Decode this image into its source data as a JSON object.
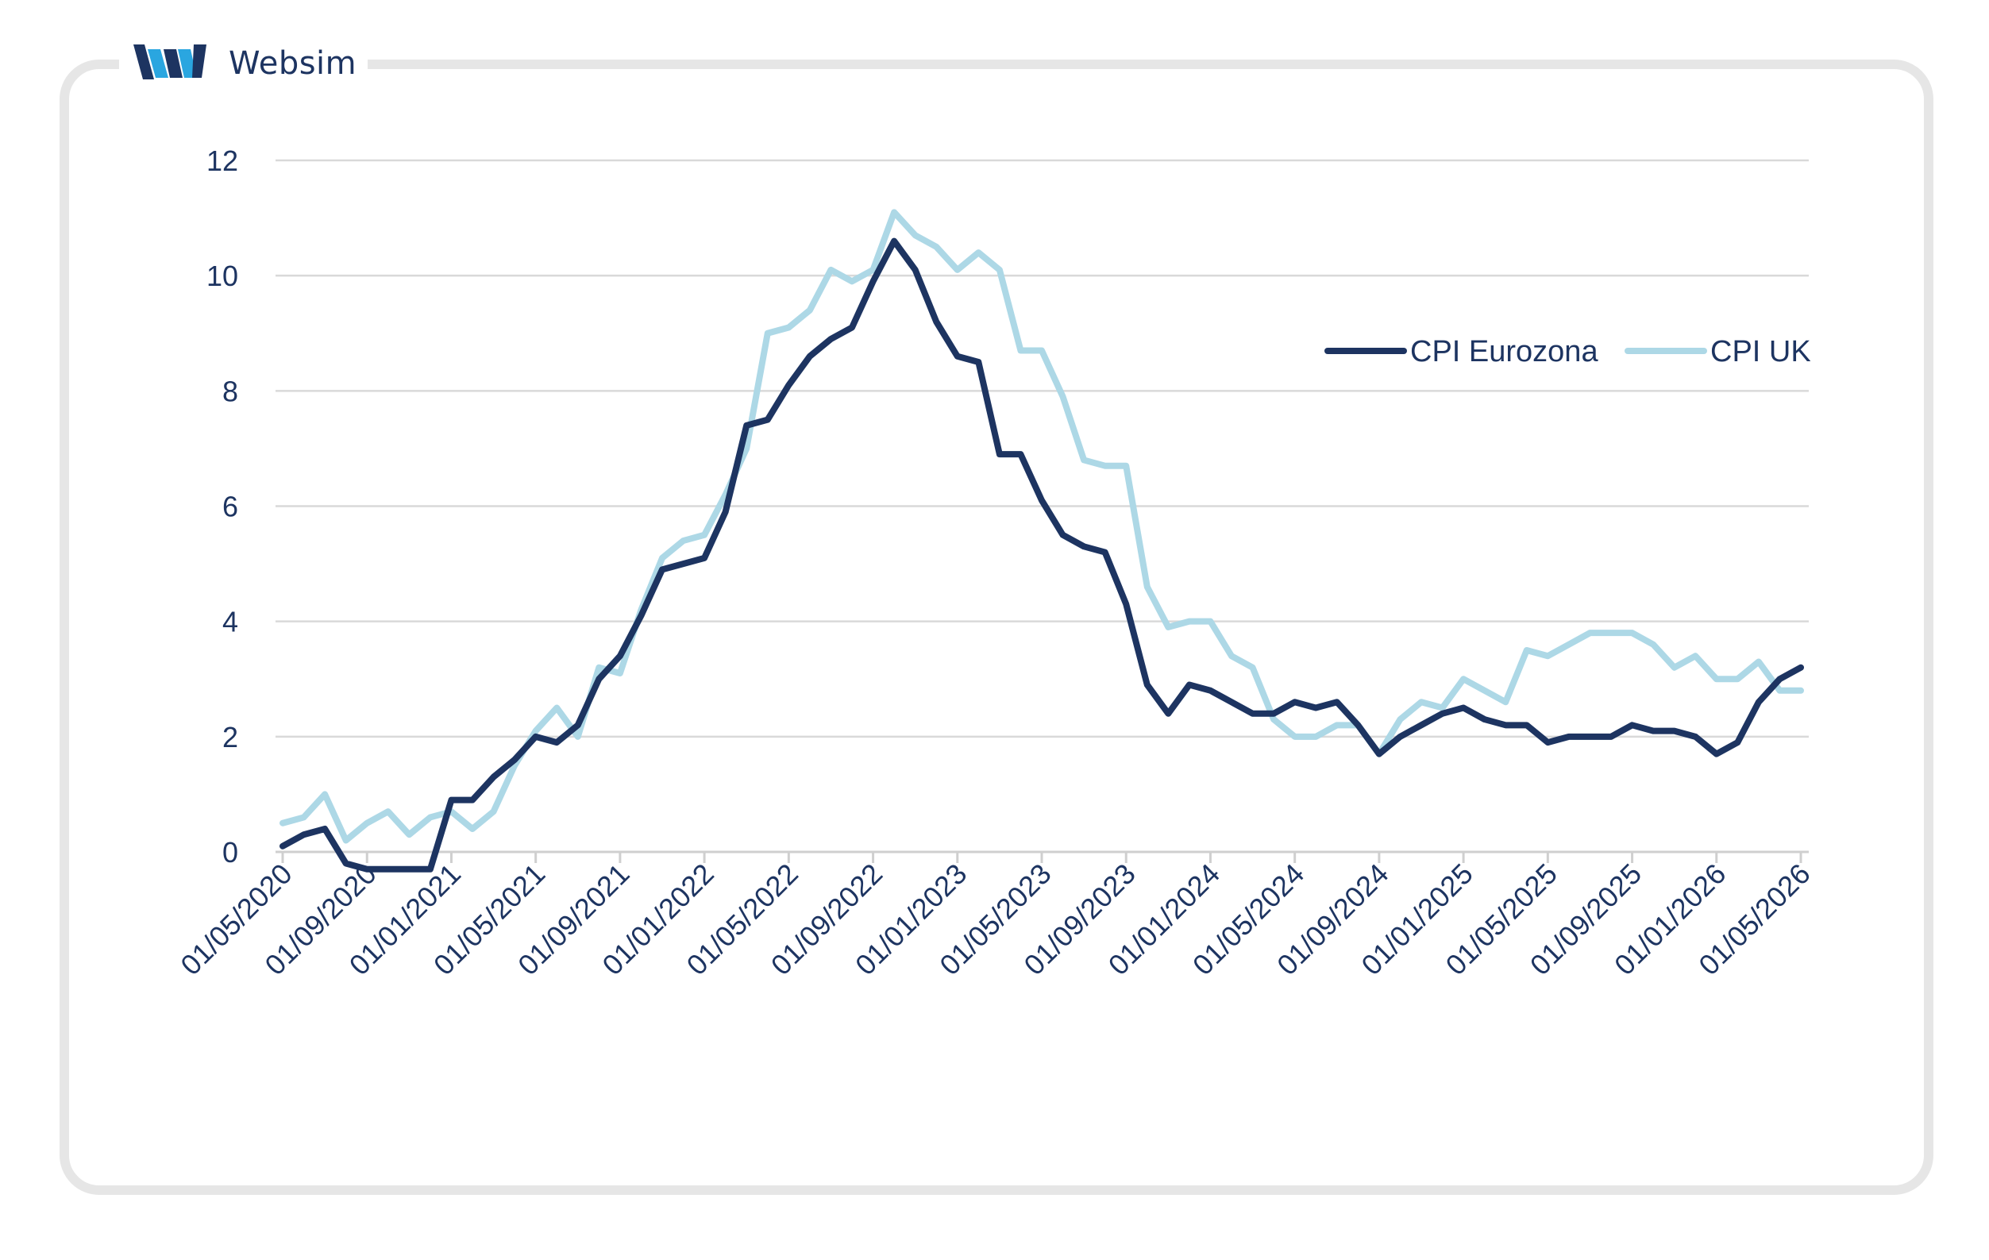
{
  "brand": {
    "name": "Websim",
    "logo_icon": "websim-logo-icon",
    "colors": {
      "dark": "#1d3461",
      "light": "#2aa6e0"
    }
  },
  "chart_data": {
    "type": "line",
    "title": "",
    "xlabel": "",
    "ylabel": "",
    "ylim": [
      0,
      12
    ],
    "yticks": [
      "0",
      "2",
      "4",
      "6",
      "8",
      "10",
      "12"
    ],
    "y_gridlines": true,
    "x_tick_labels": [
      "01/05/2020",
      "01/09/2020",
      "01/01/2021",
      "01/05/2021",
      "01/09/2021",
      "01/01/2022",
      "01/05/2022",
      "01/09/2022",
      "01/01/2023",
      "01/05/2023",
      "01/09/2023",
      "01/01/2024",
      "01/05/2024",
      "01/09/2024",
      "01/01/2025",
      "01/05/2025",
      "01/09/2025",
      "01/01/2026",
      "01/05/2026"
    ],
    "x_start": "2020-05",
    "legend_position": "right-upper",
    "series": [
      {
        "name": "CPI Eurozona",
        "color": "#1d3461",
        "values": [
          0.1,
          0.3,
          0.4,
          -0.2,
          -0.3,
          -0.3,
          -0.3,
          -0.3,
          0.9,
          0.9,
          1.3,
          1.6,
          2.0,
          1.9,
          2.2,
          3.0,
          3.4,
          4.1,
          4.9,
          5.0,
          5.1,
          5.9,
          7.4,
          7.5,
          8.1,
          8.6,
          8.9,
          9.1,
          9.9,
          10.6,
          10.1,
          9.2,
          8.6,
          8.5,
          6.9,
          6.9,
          6.1,
          5.5,
          5.3,
          5.2,
          4.3,
          2.9,
          2.4,
          2.9,
          2.8,
          2.6,
          2.4,
          2.4,
          2.6,
          2.5,
          2.6,
          2.2,
          1.7,
          2.0,
          2.2,
          2.4,
          2.5,
          2.3,
          2.2,
          2.2,
          1.9,
          2.0,
          2.0,
          2.0,
          2.2,
          2.1,
          2.1,
          2.0,
          1.7,
          1.9,
          2.6,
          3.0,
          3.2
        ]
      },
      {
        "name": "CPI UK",
        "color": "#add8e6",
        "values": [
          0.5,
          0.6,
          1.0,
          0.2,
          0.5,
          0.7,
          0.3,
          0.6,
          0.7,
          0.4,
          0.7,
          1.5,
          2.1,
          2.5,
          2.0,
          3.2,
          3.1,
          4.2,
          5.1,
          5.4,
          5.5,
          6.2,
          7.0,
          9.0,
          9.1,
          9.4,
          10.1,
          9.9,
          10.1,
          11.1,
          10.7,
          10.5,
          10.1,
          10.4,
          10.1,
          8.7,
          8.7,
          7.9,
          6.8,
          6.7,
          6.7,
          4.6,
          3.9,
          4.0,
          4.0,
          3.4,
          3.2,
          2.3,
          2.0,
          2.0,
          2.2,
          2.2,
          1.7,
          2.3,
          2.6,
          2.5,
          3.0,
          2.8,
          2.6,
          3.5,
          3.4,
          3.6,
          3.8,
          3.8,
          3.8,
          3.6,
          3.2,
          3.4,
          3.0,
          3.0,
          3.3,
          2.8,
          2.8
        ]
      }
    ]
  }
}
